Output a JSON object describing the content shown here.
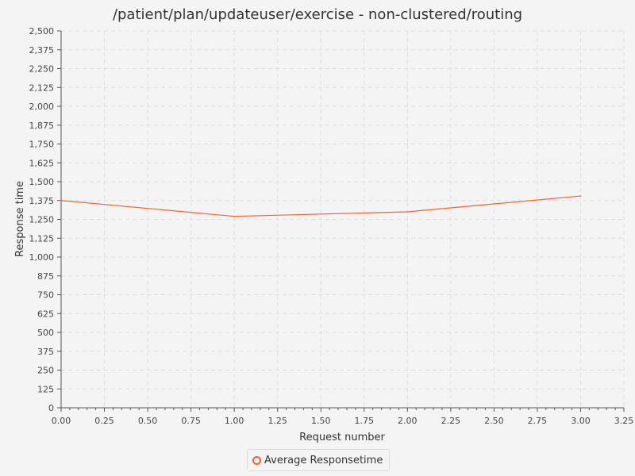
{
  "chart_data": {
    "type": "line",
    "title": "/patient/plan/updateuser/exercise - non-clustered/routing",
    "xlabel": "Request number",
    "ylabel": "Response time",
    "xlim": [
      0,
      3.25
    ],
    "ylim": [
      0,
      2500
    ],
    "x_ticks": [
      "0.00",
      "0.25",
      "0.50",
      "0.75",
      "1.00",
      "1.25",
      "1.50",
      "1.75",
      "2.00",
      "2.25",
      "2.50",
      "2.75",
      "3.00",
      "3.25"
    ],
    "y_ticks": [
      "0",
      "125",
      "250",
      "375",
      "500",
      "625",
      "750",
      "875",
      "1,000",
      "1,125",
      "1,250",
      "1,375",
      "1,500",
      "1,625",
      "1,750",
      "1,875",
      "2,000",
      "2,125",
      "2,250",
      "2,375",
      "2,500"
    ],
    "grid": true,
    "legend_position": "bottom-center",
    "series": [
      {
        "name": "Average Responsetime",
        "color": "#f3622d",
        "x": [
          0,
          1,
          2,
          3
        ],
        "y": [
          1375,
          1270,
          1300,
          1405
        ]
      }
    ]
  }
}
